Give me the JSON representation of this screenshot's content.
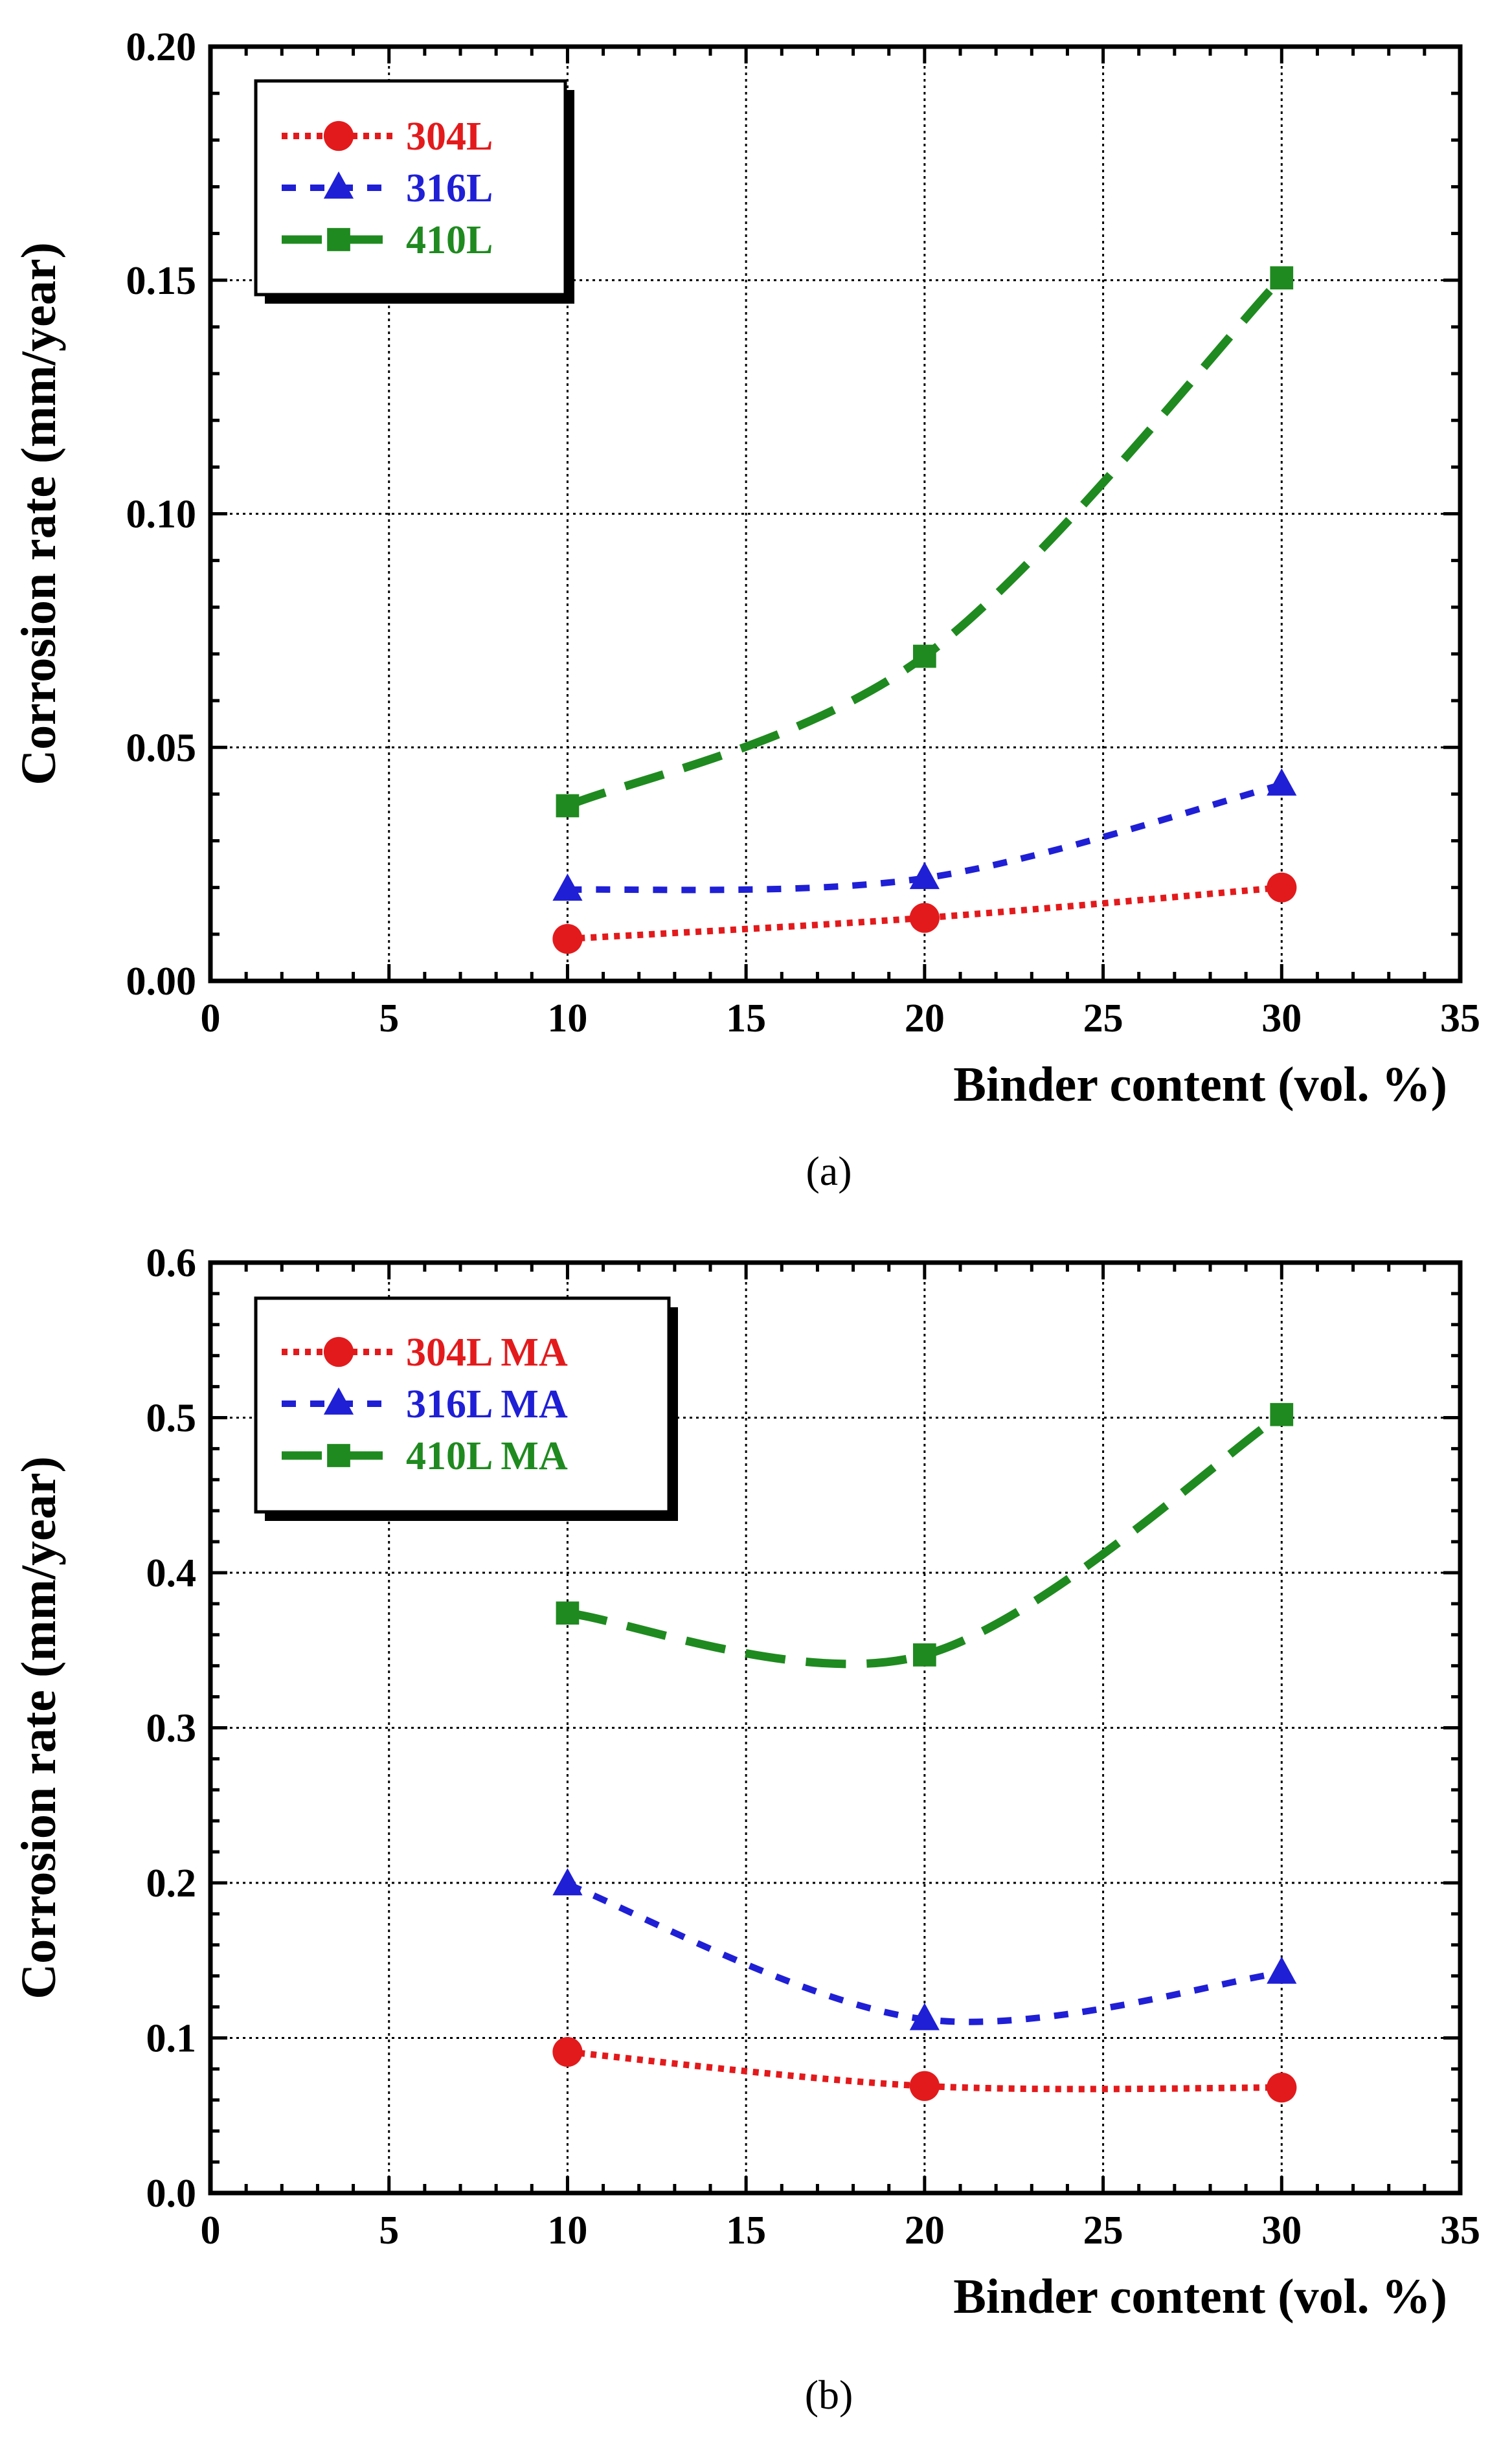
{
  "chart_data": [
    {
      "type": "line",
      "panel_label": "(a)",
      "xlabel": "Binder content (vol. %)",
      "ylabel": "Corrosion rate (mm/year)",
      "xlim": [
        0,
        35
      ],
      "ylim": [
        0,
        0.2
      ],
      "xticks": [
        0,
        5,
        10,
        15,
        20,
        25,
        30,
        35
      ],
      "xtick_labels": [
        "0",
        "5",
        "10",
        "15",
        "20",
        "25",
        "30",
        "35"
      ],
      "yticks": [
        0,
        0.05,
        0.1,
        0.15,
        0.2
      ],
      "ytick_labels": [
        "0.00",
        "0.05",
        "0.10",
        "0.15",
        "0.20"
      ],
      "grid": true,
      "legend_position": "top-left",
      "x": [
        10,
        20,
        30
      ],
      "series": [
        {
          "name": "304L",
          "values": [
            0.009,
            0.0135,
            0.02
          ],
          "color": "#e31a1c",
          "marker": "circle",
          "dash": "dotted"
        },
        {
          "name": "316L",
          "values": [
            0.0195,
            0.022,
            0.042
          ],
          "color": "#1f1fd6",
          "marker": "triangle",
          "dash": "short-dash"
        },
        {
          "name": "410L",
          "values": [
            0.0375,
            0.0695,
            0.1505
          ],
          "color": "#1f8a1f",
          "marker": "square",
          "dash": "long-dash"
        }
      ]
    },
    {
      "type": "line",
      "panel_label": "(b)",
      "xlabel": "Binder content (vol. %)",
      "ylabel": "Corrosion rate (mm/year)",
      "xlim": [
        0,
        35
      ],
      "ylim": [
        0,
        0.6
      ],
      "xticks": [
        0,
        5,
        10,
        15,
        20,
        25,
        30,
        35
      ],
      "xtick_labels": [
        "0",
        "5",
        "10",
        "15",
        "20",
        "25",
        "30",
        "35"
      ],
      "yticks": [
        0,
        0.1,
        0.2,
        0.3,
        0.4,
        0.5,
        0.6
      ],
      "ytick_labels": [
        "0.0",
        "0.1",
        "0.2",
        "0.3",
        "0.4",
        "0.5",
        "0.6"
      ],
      "grid": true,
      "legend_position": "top-left",
      "x": [
        10,
        20,
        30
      ],
      "series": [
        {
          "name": "304L MA",
          "values": [
            0.091,
            0.069,
            0.068
          ],
          "color": "#e31a1c",
          "marker": "circle",
          "dash": "dotted"
        },
        {
          "name": "316L MA",
          "values": [
            0.199,
            0.112,
            0.142
          ],
          "color": "#1f1fd6",
          "marker": "triangle",
          "dash": "short-dash"
        },
        {
          "name": "410L MA",
          "values": [
            0.374,
            0.347,
            0.502
          ],
          "color": "#1f8a1f",
          "marker": "square",
          "dash": "long-dash"
        }
      ]
    }
  ]
}
